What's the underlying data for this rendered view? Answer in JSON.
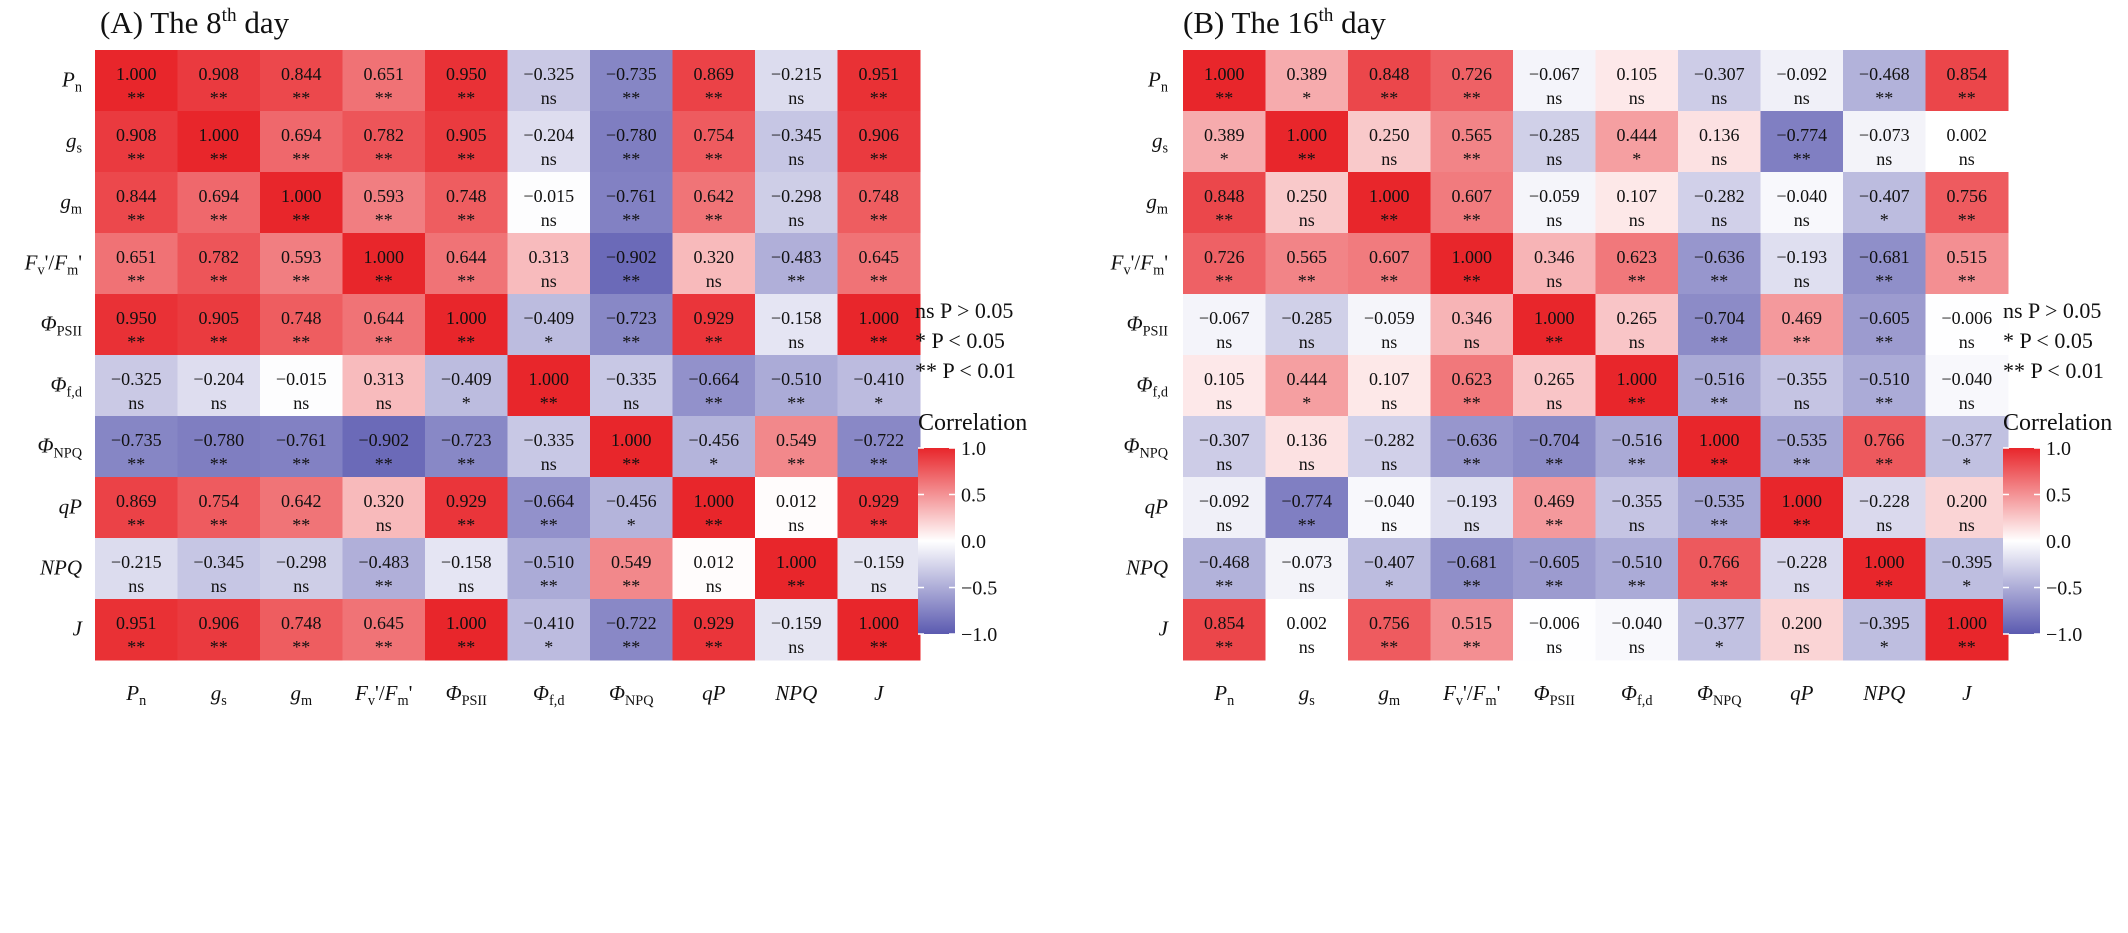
{
  "labels": [
    {
      "base": "P",
      "sub": "n",
      "italic": true
    },
    {
      "base": "g",
      "sub": "s",
      "italic": true
    },
    {
      "base": "g",
      "sub": "m",
      "italic": true
    },
    {
      "base": "Fv'/Fm'",
      "italic": true
    },
    {
      "base": "Φ",
      "sub": "PSII",
      "italic": true
    },
    {
      "base": "Φ",
      "sub": "f,d",
      "italic": true
    },
    {
      "base": "Φ",
      "sub": "NPQ",
      "italic": true
    },
    {
      "base": "qP",
      "italic": true
    },
    {
      "base": "NPQ",
      "italic": true
    },
    {
      "base": "J",
      "italic": true
    }
  ],
  "significance_legend": [
    "ns P > 0.05",
    "*  P < 0.05",
    "** P < 0.01"
  ],
  "colorbar": {
    "title": "Correlation",
    "ticks": [
      "1.0",
      "0.5",
      "0.0",
      "−0.5",
      "−1.0"
    ],
    "low_color": "#5b5ab0",
    "mid_color": "#ffffff",
    "high_color": "#e8262b"
  },
  "chart_data": [
    {
      "type": "heatmap",
      "panel": "(A)",
      "title": "The 8th day",
      "title_main": "The 8",
      "title_sup": "th",
      "title_tail": " day",
      "vmin": -1.0,
      "vmax": 1.0,
      "values": [
        [
          1.0,
          0.908,
          0.844,
          0.651,
          0.95,
          -0.325,
          -0.735,
          0.869,
          -0.215,
          0.951
        ],
        [
          0.908,
          1.0,
          0.694,
          0.782,
          0.905,
          -0.204,
          -0.78,
          0.754,
          -0.345,
          0.906
        ],
        [
          0.844,
          0.694,
          1.0,
          0.593,
          0.748,
          -0.015,
          -0.761,
          0.642,
          -0.298,
          0.748
        ],
        [
          0.651,
          0.782,
          0.593,
          1.0,
          0.644,
          0.313,
          -0.902,
          0.32,
          -0.483,
          0.645
        ],
        [
          0.95,
          0.905,
          0.748,
          0.644,
          1.0,
          -0.409,
          -0.723,
          0.929,
          -0.158,
          1.0
        ],
        [
          -0.325,
          -0.204,
          -0.015,
          0.313,
          -0.409,
          1.0,
          -0.335,
          -0.664,
          -0.51,
          -0.41
        ],
        [
          -0.735,
          -0.78,
          -0.761,
          -0.902,
          -0.723,
          -0.335,
          1.0,
          -0.456,
          0.549,
          -0.722
        ],
        [
          0.869,
          0.754,
          0.642,
          0.32,
          0.929,
          -0.664,
          -0.456,
          1.0,
          0.012,
          0.929
        ],
        [
          -0.215,
          -0.345,
          -0.298,
          -0.483,
          -0.158,
          -0.51,
          0.549,
          0.012,
          1.0,
          -0.159
        ],
        [
          0.951,
          0.906,
          0.748,
          0.645,
          1.0,
          -0.41,
          -0.722,
          0.929,
          -0.159,
          1.0
        ]
      ],
      "significance": [
        [
          "**",
          "**",
          "**",
          "**",
          "**",
          "ns",
          "**",
          "**",
          "ns",
          "**"
        ],
        [
          "**",
          "**",
          "**",
          "**",
          "**",
          "ns",
          "**",
          "**",
          "ns",
          "**"
        ],
        [
          "**",
          "**",
          "**",
          "**",
          "**",
          "ns",
          "**",
          "**",
          "ns",
          "**"
        ],
        [
          "**",
          "**",
          "**",
          "**",
          "**",
          "ns",
          "**",
          "ns",
          "**",
          "**"
        ],
        [
          "**",
          "**",
          "**",
          "**",
          "**",
          "*",
          "**",
          "**",
          "ns",
          "**"
        ],
        [
          "ns",
          "ns",
          "ns",
          "ns",
          "*",
          "**",
          "ns",
          "**",
          "**",
          "*"
        ],
        [
          "**",
          "**",
          "**",
          "**",
          "**",
          "ns",
          "**",
          "*",
          "**",
          "**"
        ],
        [
          "**",
          "**",
          "**",
          "ns",
          "**",
          "**",
          "*",
          "**",
          "ns",
          "**"
        ],
        [
          "ns",
          "ns",
          "ns",
          "**",
          "ns",
          "**",
          "**",
          "ns",
          "**",
          "ns"
        ],
        [
          "**",
          "**",
          "**",
          "**",
          "**",
          "*",
          "**",
          "**",
          "ns",
          "**"
        ]
      ]
    },
    {
      "type": "heatmap",
      "panel": "(B)",
      "title": "The 16th day",
      "title_main": "The 16",
      "title_sup": "th",
      "title_tail": " day",
      "vmin": -1.0,
      "vmax": 1.0,
      "values": [
        [
          1.0,
          0.389,
          0.848,
          0.726,
          -0.067,
          0.105,
          -0.307,
          -0.092,
          -0.468,
          0.854
        ],
        [
          0.389,
          1.0,
          0.25,
          0.565,
          -0.285,
          0.444,
          0.136,
          -0.774,
          -0.073,
          0.002
        ],
        [
          0.848,
          0.25,
          1.0,
          0.607,
          -0.059,
          0.107,
          -0.282,
          -0.04,
          -0.407,
          0.756
        ],
        [
          0.726,
          0.565,
          0.607,
          1.0,
          0.346,
          0.623,
          -0.636,
          -0.193,
          -0.681,
          0.515
        ],
        [
          -0.067,
          -0.285,
          -0.059,
          0.346,
          1.0,
          0.265,
          -0.704,
          0.469,
          -0.605,
          -0.006
        ],
        [
          0.105,
          0.444,
          0.107,
          0.623,
          0.265,
          1.0,
          -0.516,
          -0.355,
          -0.51,
          -0.04
        ],
        [
          -0.307,
          0.136,
          -0.282,
          -0.636,
          -0.704,
          -0.516,
          1.0,
          -0.535,
          0.766,
          -0.377
        ],
        [
          -0.092,
          -0.774,
          -0.04,
          -0.193,
          0.469,
          -0.355,
          -0.535,
          1.0,
          -0.228,
          0.2
        ],
        [
          -0.468,
          -0.073,
          -0.407,
          -0.681,
          -0.605,
          -0.51,
          0.766,
          -0.228,
          1.0,
          -0.395
        ],
        [
          0.854,
          0.002,
          0.756,
          0.515,
          -0.006,
          -0.04,
          -0.377,
          0.2,
          -0.395,
          1.0
        ]
      ],
      "significance": [
        [
          "**",
          "*",
          "**",
          "**",
          "ns",
          "ns",
          "ns",
          "ns",
          "**",
          "**"
        ],
        [
          "*",
          "**",
          "ns",
          "**",
          "ns",
          "*",
          "ns",
          "**",
          "ns",
          "ns"
        ],
        [
          "**",
          "ns",
          "**",
          "**",
          "ns",
          "ns",
          "ns",
          "ns",
          "*",
          "**"
        ],
        [
          "**",
          "**",
          "**",
          "**",
          "ns",
          "**",
          "**",
          "ns",
          "**",
          "**"
        ],
        [
          "ns",
          "ns",
          "ns",
          "ns",
          "**",
          "ns",
          "**",
          "**",
          "**",
          "ns"
        ],
        [
          "ns",
          "*",
          "ns",
          "**",
          "ns",
          "**",
          "**",
          "ns",
          "**",
          "ns"
        ],
        [
          "ns",
          "ns",
          "ns",
          "**",
          "**",
          "**",
          "**",
          "**",
          "**",
          "*"
        ],
        [
          "ns",
          "**",
          "ns",
          "ns",
          "**",
          "ns",
          "**",
          "**",
          "ns",
          "ns"
        ],
        [
          "**",
          "ns",
          "*",
          "**",
          "**",
          "**",
          "**",
          "ns",
          "**",
          "*"
        ],
        [
          "**",
          "ns",
          "**",
          "**",
          "ns",
          "ns",
          "*",
          "ns",
          "*",
          "**"
        ]
      ]
    }
  ]
}
